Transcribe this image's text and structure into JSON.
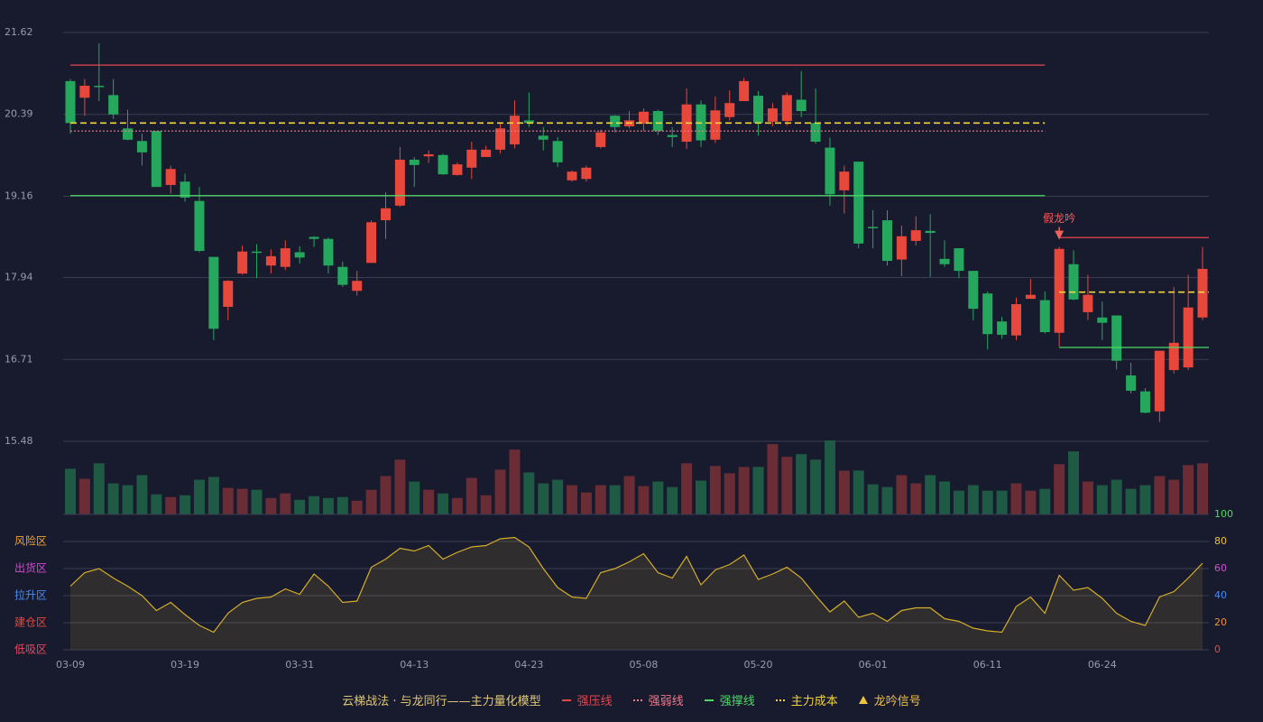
{
  "chart_data": [
    {
      "type": "candlestick",
      "title": "云梯战法 · 与龙同行——主力量化模型",
      "ylim": [
        15.48,
        21.62
      ],
      "yticks": [
        15.48,
        16.71,
        17.94,
        19.16,
        20.39,
        21.62
      ],
      "grid": true,
      "up_color": "#e8483c",
      "down_color": "#25a85e",
      "open": [
        20.89,
        20.64,
        20.82,
        20.68,
        20.18,
        19.99,
        20.14,
        19.33,
        19.38,
        19.09,
        18.25,
        17.5,
        18.0,
        18.33,
        18.12,
        18.1,
        18.32,
        18.55,
        18.52,
        18.1,
        17.74,
        18.16,
        18.8,
        19.02,
        19.71,
        19.76,
        19.78,
        19.48,
        19.59,
        19.75,
        19.86,
        19.94,
        20.3,
        20.07,
        19.99,
        19.4,
        19.42,
        19.9,
        20.37,
        20.21,
        20.25,
        20.44,
        20.08,
        19.98,
        20.54,
        20.01,
        20.35,
        20.59,
        20.67,
        20.28,
        20.29,
        20.61,
        20.26,
        19.89,
        19.25,
        19.68,
        18.7,
        18.8,
        18.21,
        18.49,
        18.64,
        18.22,
        18.38,
        18.04,
        17.7,
        17.28,
        17.07,
        17.62,
        17.6,
        17.11,
        18.14,
        17.42,
        17.34,
        17.37,
        16.47,
        16.23,
        15.93,
        16.55,
        16.59,
        17.34
      ],
      "high": [
        20.92,
        20.92,
        21.46,
        20.92,
        20.46,
        20.1,
        20.14,
        19.62,
        19.5,
        19.3,
        18.25,
        17.9,
        18.42,
        18.44,
        18.36,
        18.5,
        18.41,
        18.56,
        18.54,
        18.18,
        18.04,
        18.8,
        19.22,
        19.9,
        19.75,
        19.85,
        19.8,
        19.67,
        19.98,
        19.92,
        20.26,
        20.6,
        20.72,
        20.2,
        20.05,
        19.55,
        19.62,
        20.16,
        20.38,
        20.44,
        20.48,
        20.46,
        20.2,
        20.78,
        20.6,
        20.66,
        20.75,
        20.94,
        20.74,
        20.56,
        20.72,
        21.04,
        20.78,
        20.04,
        19.62,
        19.68,
        18.95,
        18.95,
        18.72,
        18.86,
        18.89,
        18.5,
        18.38,
        18.04,
        17.73,
        17.35,
        17.64,
        17.92,
        17.73,
        18.4,
        18.35,
        17.98,
        17.58,
        17.37,
        16.66,
        16.28,
        16.84,
        17.8,
        17.98,
        18.4
      ],
      "low": [
        20.1,
        20.37,
        20.59,
        20.32,
        20.0,
        19.62,
        19.3,
        19.2,
        19.08,
        18.32,
        17.0,
        17.3,
        17.98,
        17.93,
        18.0,
        18.05,
        18.15,
        18.4,
        18.0,
        17.8,
        17.67,
        18.16,
        18.52,
        19.0,
        19.3,
        19.66,
        19.48,
        19.47,
        19.42,
        19.75,
        19.8,
        19.88,
        20.2,
        19.85,
        19.6,
        19.38,
        19.38,
        19.88,
        20.12,
        20.18,
        20.14,
        20.08,
        19.9,
        19.87,
        19.9,
        19.96,
        20.3,
        20.59,
        20.07,
        20.21,
        20.22,
        20.35,
        19.95,
        19.02,
        18.9,
        18.38,
        18.38,
        18.12,
        17.96,
        18.42,
        17.95,
        18.1,
        17.93,
        17.3,
        16.86,
        17.02,
        17.0,
        17.62,
        17.1,
        16.9,
        17.6,
        17.3,
        17.0,
        16.56,
        16.2,
        15.9,
        15.77,
        16.5,
        16.55,
        17.3
      ],
      "close": [
        20.26,
        20.82,
        20.8,
        20.39,
        20.01,
        19.82,
        19.3,
        19.57,
        19.14,
        18.34,
        17.17,
        17.89,
        18.33,
        18.31,
        18.26,
        18.38,
        18.24,
        18.52,
        18.12,
        17.83,
        17.89,
        18.77,
        18.98,
        19.71,
        19.63,
        19.79,
        19.49,
        19.64,
        19.86,
        19.86,
        20.18,
        20.37,
        20.26,
        20.01,
        19.67,
        19.53,
        19.59,
        20.12,
        20.2,
        20.3,
        20.43,
        20.14,
        20.05,
        20.54,
        20.0,
        20.45,
        20.56,
        20.89,
        20.26,
        20.48,
        20.68,
        20.44,
        19.98,
        19.19,
        19.53,
        18.45,
        18.68,
        18.19,
        18.56,
        18.65,
        18.61,
        18.14,
        18.04,
        17.47,
        17.09,
        17.08,
        17.54,
        17.68,
        17.12,
        18.37,
        17.61,
        17.68,
        17.26,
        16.69,
        16.24,
        15.91,
        16.84,
        16.96,
        17.49,
        18.07
      ],
      "levels": [
        {
          "name": "强压线",
          "color": "#e8444c",
          "style": "solid",
          "segments": [
            {
              "from": 0,
              "to": 68,
              "value": 21.13
            },
            {
              "from": 69,
              "to": 79,
              "value": 18.54
            }
          ]
        },
        {
          "name": "强弱线",
          "color": "#f07a8a",
          "style": "dotted",
          "segments": [
            {
              "from": 0,
              "to": 68,
              "value": 20.14
            }
          ]
        },
        {
          "name": "强撑线",
          "color": "#4cd964",
          "style": "solid",
          "segments": [
            {
              "from": 0,
              "to": 68,
              "value": 19.17
            },
            {
              "from": 69,
              "to": 79,
              "value": 16.89
            }
          ]
        },
        {
          "name": "主力成本",
          "color": "#f2d43c",
          "style": "dashed",
          "segments": [
            {
              "from": 0,
              "to": 68,
              "value": 20.26
            },
            {
              "from": 69,
              "to": 79,
              "value": 17.72
            }
          ]
        }
      ],
      "signal": {
        "name": "龙吟信号",
        "color": "#f0c040",
        "label_color": "#f06060",
        "points": [
          {
            "index": 69,
            "label": "假龙吟"
          }
        ]
      }
    },
    {
      "type": "bar",
      "up_color": "#6a2c35",
      "down_color": "#1f5a44",
      "values": [
        50,
        39,
        56,
        34,
        32,
        43,
        22,
        19,
        21,
        38,
        41,
        29,
        28,
        27,
        18,
        23,
        16,
        20,
        18,
        19,
        15,
        27,
        42,
        60,
        36,
        27,
        23,
        18,
        40,
        21,
        49,
        71,
        46,
        34,
        38,
        32,
        24,
        32,
        32,
        42,
        31,
        36,
        30,
        56,
        37,
        53,
        45,
        52,
        52,
        77,
        63,
        66,
        60,
        81,
        48,
        48,
        33,
        30,
        43,
        34,
        43,
        36,
        26,
        32,
        26,
        26,
        34,
        26,
        28,
        55,
        69,
        36,
        32,
        38,
        28,
        32,
        42,
        38,
        54,
        56
      ]
    },
    {
      "type": "line",
      "color": "#d4ad2a",
      "ylim": [
        0,
        100
      ],
      "yticks": [
        0,
        20,
        40,
        60,
        80,
        100
      ],
      "tick_colors": [
        "#e8483c",
        "#f0903a",
        "#4a8cf0",
        "#d050d0",
        "#f0c030",
        "#4cd964"
      ],
      "zones": [
        {
          "label": "风险区",
          "value": 80,
          "color": "#f0a030"
        },
        {
          "label": "出货区",
          "value": 60,
          "color": "#d04ad0"
        },
        {
          "label": "拉升区",
          "value": 40,
          "color": "#4a8cf0"
        },
        {
          "label": "建仓区",
          "value": 20,
          "color": "#e8483c"
        },
        {
          "label": "低吸区",
          "value": 0,
          "color": "#e84860"
        }
      ],
      "categories": [
        "03-09",
        null,
        null,
        null,
        null,
        null,
        null,
        null,
        "03-19",
        null,
        null,
        null,
        null,
        null,
        null,
        null,
        "03-31",
        null,
        null,
        null,
        null,
        null,
        null,
        null,
        "04-13",
        null,
        null,
        null,
        null,
        null,
        null,
        null,
        "04-23",
        null,
        null,
        null,
        null,
        null,
        null,
        null,
        "05-08",
        null,
        null,
        null,
        null,
        null,
        null,
        null,
        "05-20",
        null,
        null,
        null,
        null,
        null,
        null,
        null,
        "06-01",
        null,
        null,
        null,
        null,
        null,
        null,
        null,
        "06-11",
        null,
        null,
        null,
        null,
        null,
        null,
        null,
        "06-24",
        null,
        null,
        null,
        null,
        null,
        null,
        null
      ],
      "values": [
        47,
        57,
        60,
        53,
        47,
        40,
        29,
        35,
        26,
        18,
        13,
        27,
        35,
        38,
        39,
        45,
        41,
        56,
        47,
        35,
        36,
        61,
        67,
        75,
        73,
        77,
        67,
        72,
        76,
        77,
        82,
        83,
        76,
        60,
        46,
        39,
        38,
        57,
        60,
        65,
        71,
        57,
        53,
        69,
        48,
        59,
        63,
        70,
        52,
        56,
        61,
        53,
        40,
        28,
        36,
        24,
        27,
        21,
        29,
        31,
        31,
        23,
        21,
        16,
        14,
        13,
        32,
        39,
        27,
        55,
        44,
        46,
        38,
        27,
        21,
        18,
        39,
        43,
        53,
        64
      ]
    }
  ]
}
